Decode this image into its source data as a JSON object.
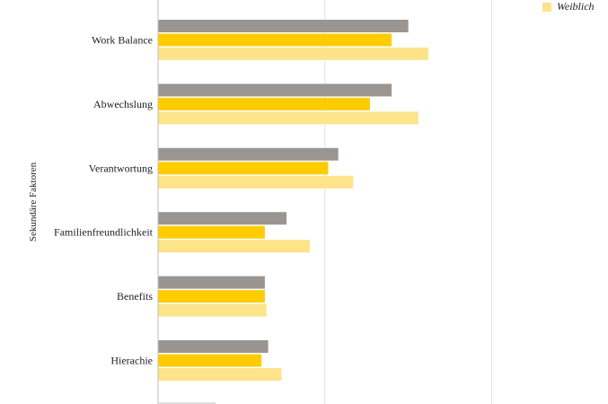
{
  "chart_data": {
    "type": "bar",
    "orientation": "horizontal",
    "ylabel": "Sekundäre Faktoren",
    "categories": [
      "Work Balance",
      "Abwechslung",
      "Verantwortung",
      "Familienfreundlichkeit",
      "Benefits",
      "Hierachie"
    ],
    "series": [
      {
        "color": "#9a9590",
        "values": [
          150,
          140,
          108,
          77,
          64,
          66
        ]
      },
      {
        "color": "#ffcc00",
        "values": [
          140,
          127,
          102,
          64,
          64,
          62
        ]
      },
      {
        "name": "Weiblich",
        "color": "#fde38a",
        "values": [
          162,
          156,
          117,
          91,
          65,
          74
        ]
      }
    ],
    "xlim": [
      0,
      260
    ],
    "grid": true,
    "legend": "top-right"
  }
}
